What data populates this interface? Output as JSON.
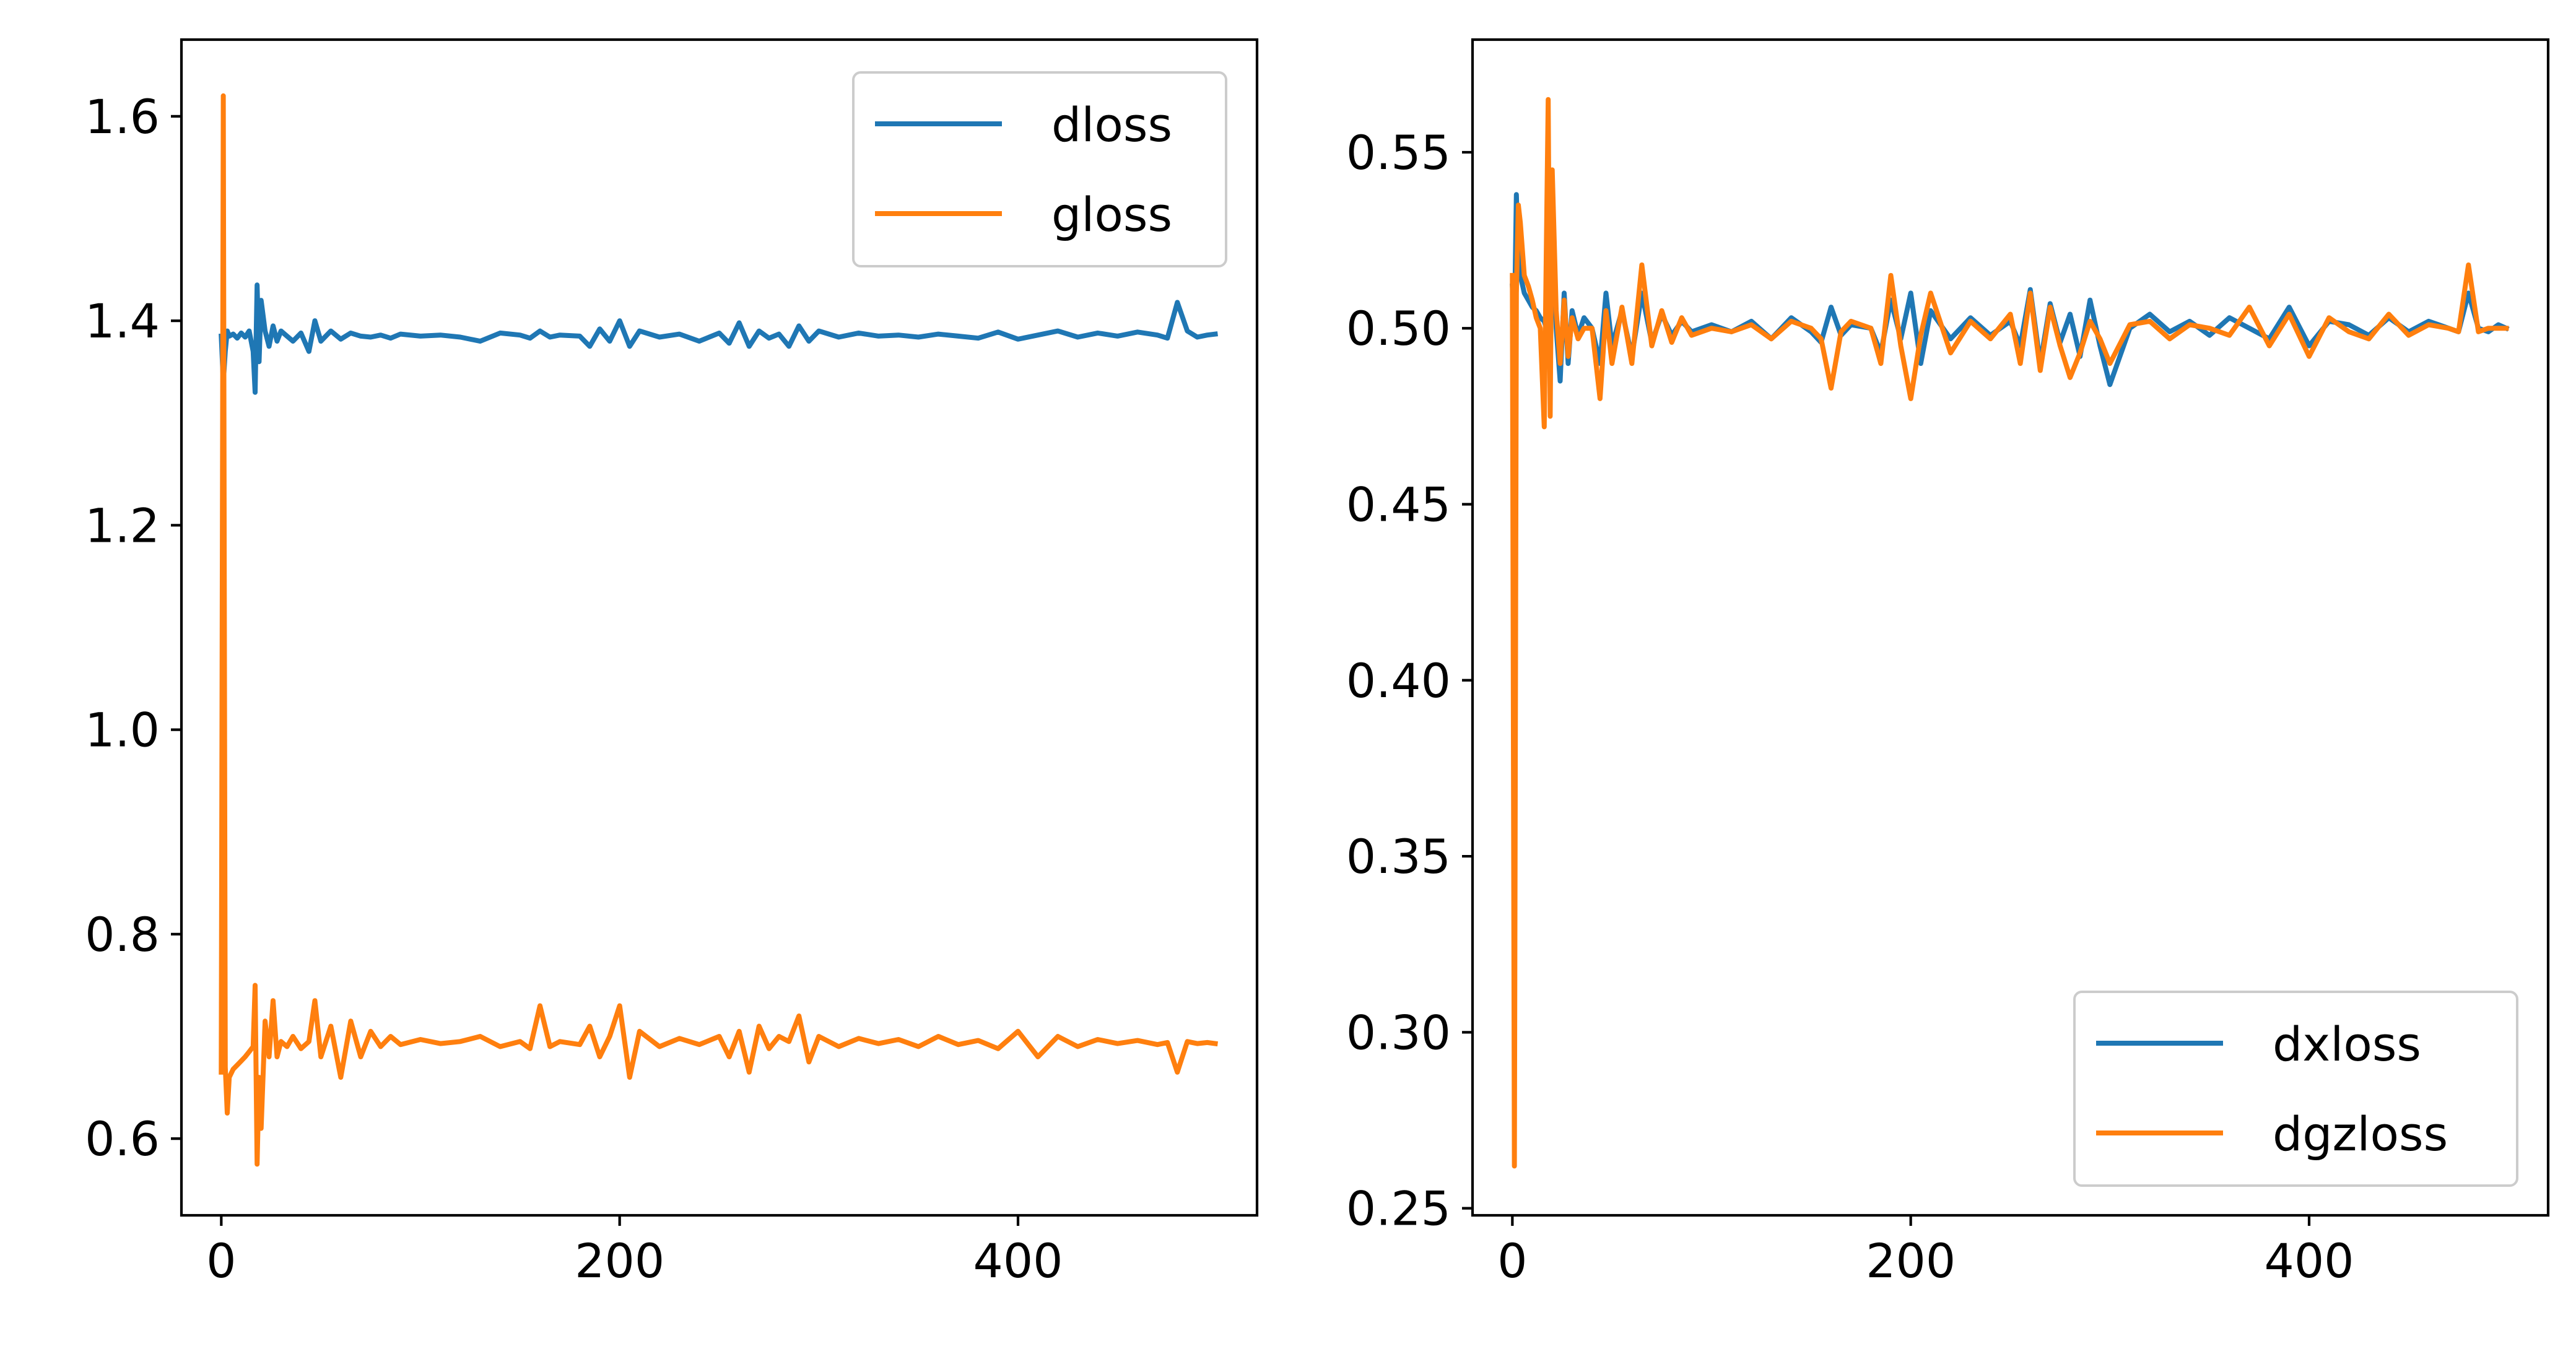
{
  "chart_data": [
    {
      "type": "line",
      "title": "",
      "xlabel": "",
      "ylabel": "",
      "xlim": [
        -20,
        520
      ],
      "ylim": [
        0.525,
        1.675
      ],
      "xticks": [
        0,
        200,
        400
      ],
      "xtick_labels": [
        "0",
        "200",
        "400"
      ],
      "yticks": [
        0.6,
        0.8,
        1.0,
        1.2,
        1.4,
        1.6
      ],
      "ytick_labels": [
        "0.6",
        "0.8",
        "1.0",
        "1.2",
        "1.4",
        "1.6"
      ],
      "grid": false,
      "legend": "upper right",
      "x": [
        0,
        1,
        2,
        3,
        4,
        6,
        8,
        10,
        12,
        14,
        16,
        17,
        18,
        19,
        20,
        22,
        24,
        26,
        28,
        30,
        33,
        36,
        40,
        44,
        47,
        50,
        55,
        60,
        65,
        70,
        75,
        80,
        85,
        90,
        100,
        110,
        120,
        130,
        140,
        150,
        155,
        160,
        165,
        170,
        180,
        185,
        190,
        195,
        200,
        205,
        210,
        220,
        230,
        240,
        250,
        255,
        260,
        265,
        270,
        275,
        280,
        285,
        290,
        295,
        300,
        310,
        320,
        330,
        340,
        350,
        360,
        370,
        380,
        390,
        400,
        410,
        420,
        430,
        440,
        450,
        460,
        470,
        475,
        480,
        485,
        490,
        495,
        499
      ],
      "series": [
        {
          "name": "dloss",
          "color": "#1f77b4",
          "values": [
            1.385,
            1.34,
            1.37,
            1.39,
            1.385,
            1.387,
            1.383,
            1.388,
            1.384,
            1.39,
            1.37,
            1.33,
            1.435,
            1.36,
            1.42,
            1.39,
            1.375,
            1.395,
            1.38,
            1.39,
            1.385,
            1.38,
            1.388,
            1.37,
            1.4,
            1.38,
            1.39,
            1.382,
            1.388,
            1.385,
            1.384,
            1.386,
            1.383,
            1.387,
            1.385,
            1.386,
            1.384,
            1.38,
            1.388,
            1.386,
            1.383,
            1.39,
            1.384,
            1.386,
            1.385,
            1.375,
            1.392,
            1.38,
            1.4,
            1.375,
            1.39,
            1.384,
            1.387,
            1.38,
            1.388,
            1.378,
            1.398,
            1.375,
            1.39,
            1.383,
            1.387,
            1.375,
            1.395,
            1.38,
            1.39,
            1.384,
            1.388,
            1.385,
            1.386,
            1.384,
            1.387,
            1.385,
            1.383,
            1.389,
            1.382,
            1.386,
            1.39,
            1.384,
            1.388,
            1.385,
            1.389,
            1.386,
            1.383,
            1.418,
            1.39,
            1.384,
            1.386,
            1.387
          ]
        },
        {
          "name": "gloss",
          "color": "#ff7f0e",
          "values": [
            0.665,
            1.62,
            0.67,
            0.625,
            0.66,
            0.668,
            0.672,
            0.676,
            0.68,
            0.685,
            0.69,
            0.75,
            0.575,
            0.66,
            0.61,
            0.715,
            0.68,
            0.735,
            0.68,
            0.695,
            0.69,
            0.7,
            0.688,
            0.695,
            0.735,
            0.68,
            0.71,
            0.66,
            0.715,
            0.68,
            0.705,
            0.69,
            0.7,
            0.692,
            0.697,
            0.693,
            0.695,
            0.7,
            0.69,
            0.695,
            0.688,
            0.73,
            0.69,
            0.695,
            0.692,
            0.71,
            0.68,
            0.7,
            0.73,
            0.66,
            0.705,
            0.69,
            0.698,
            0.692,
            0.7,
            0.68,
            0.705,
            0.665,
            0.71,
            0.688,
            0.7,
            0.695,
            0.72,
            0.675,
            0.7,
            0.69,
            0.698,
            0.693,
            0.697,
            0.69,
            0.7,
            0.692,
            0.696,
            0.688,
            0.705,
            0.68,
            0.7,
            0.69,
            0.697,
            0.693,
            0.696,
            0.692,
            0.694,
            0.665,
            0.695,
            0.693,
            0.694,
            0.693
          ]
        }
      ]
    },
    {
      "type": "line",
      "title": "",
      "xlabel": "",
      "ylabel": "",
      "xlim": [
        -20,
        520
      ],
      "ylim": [
        0.248,
        0.582
      ],
      "xticks": [
        0,
        200,
        400
      ],
      "xtick_labels": [
        "0",
        "200",
        "400"
      ],
      "yticks": [
        0.25,
        0.3,
        0.35,
        0.4,
        0.45,
        0.5,
        0.55
      ],
      "ytick_labels": [
        "0.25",
        "0.30",
        "0.35",
        "0.40",
        "0.45",
        "0.50",
        "0.55"
      ],
      "grid": false,
      "legend": "lower right",
      "x": [
        0,
        1,
        2,
        3,
        4,
        6,
        8,
        10,
        12,
        14,
        16,
        17,
        18,
        19,
        20,
        22,
        24,
        26,
        28,
        30,
        33,
        36,
        40,
        44,
        47,
        50,
        55,
        60,
        65,
        70,
        75,
        80,
        85,
        90,
        100,
        110,
        120,
        130,
        140,
        150,
        155,
        160,
        165,
        170,
        180,
        185,
        190,
        195,
        200,
        205,
        210,
        220,
        230,
        240,
        250,
        255,
        260,
        265,
        270,
        275,
        280,
        285,
        290,
        295,
        300,
        310,
        320,
        330,
        340,
        350,
        360,
        370,
        380,
        390,
        400,
        410,
        420,
        430,
        440,
        450,
        460,
        470,
        475,
        480,
        485,
        490,
        495,
        499
      ],
      "series": [
        {
          "name": "dxloss",
          "color": "#1f77b4",
          "values": [
            0.512,
            0.5,
            0.538,
            0.52,
            0.515,
            0.51,
            0.508,
            0.506,
            0.505,
            0.503,
            0.502,
            0.5,
            0.55,
            0.49,
            0.535,
            0.5,
            0.485,
            0.51,
            0.49,
            0.505,
            0.498,
            0.503,
            0.5,
            0.49,
            0.51,
            0.495,
            0.505,
            0.492,
            0.51,
            0.496,
            0.504,
            0.498,
            0.502,
            0.499,
            0.501,
            0.499,
            0.502,
            0.497,
            0.503,
            0.499,
            0.496,
            0.506,
            0.498,
            0.501,
            0.5,
            0.493,
            0.508,
            0.497,
            0.51,
            0.49,
            0.505,
            0.497,
            0.503,
            0.498,
            0.502,
            0.495,
            0.511,
            0.49,
            0.507,
            0.496,
            0.504,
            0.492,
            0.508,
            0.495,
            0.484,
            0.5,
            0.504,
            0.499,
            0.502,
            0.498,
            0.503,
            0.5,
            0.497,
            0.506,
            0.495,
            0.502,
            0.501,
            0.498,
            0.503,
            0.499,
            0.502,
            0.5,
            0.499,
            0.51,
            0.5,
            0.499,
            0.501,
            0.5
          ]
        },
        {
          "name": "dgzloss",
          "color": "#ff7f0e",
          "values": [
            0.515,
            0.262,
            0.51,
            0.535,
            0.53,
            0.515,
            0.512,
            0.508,
            0.503,
            0.5,
            0.472,
            0.52,
            0.565,
            0.475,
            0.545,
            0.505,
            0.49,
            0.508,
            0.492,
            0.503,
            0.497,
            0.5,
            0.5,
            0.48,
            0.505,
            0.49,
            0.506,
            0.49,
            0.518,
            0.495,
            0.505,
            0.496,
            0.503,
            0.498,
            0.5,
            0.499,
            0.501,
            0.497,
            0.502,
            0.5,
            0.497,
            0.483,
            0.499,
            0.502,
            0.5,
            0.49,
            0.515,
            0.495,
            0.48,
            0.498,
            0.51,
            0.493,
            0.502,
            0.497,
            0.504,
            0.49,
            0.51,
            0.488,
            0.506,
            0.495,
            0.486,
            0.493,
            0.502,
            0.497,
            0.49,
            0.501,
            0.502,
            0.497,
            0.501,
            0.5,
            0.498,
            0.506,
            0.495,
            0.504,
            0.492,
            0.503,
            0.499,
            0.497,
            0.504,
            0.498,
            0.501,
            0.5,
            0.499,
            0.518,
            0.499,
            0.5,
            0.5,
            0.5
          ]
        }
      ]
    }
  ]
}
